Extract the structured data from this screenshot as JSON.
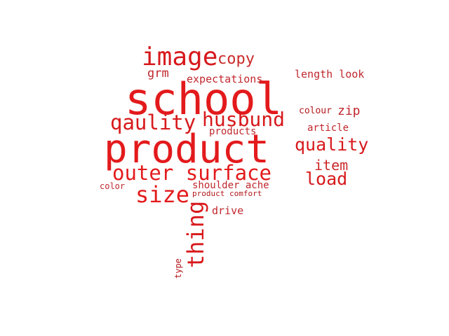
{
  "palette": {
    "background": "#ffffff",
    "word": "#e31a1c",
    "word_dark": "#b2181d",
    "word_mid": "#cb2b2b"
  },
  "words": {
    "product": "product",
    "school": "school",
    "image": "image",
    "copy": "copy",
    "grm": "grm",
    "expectations": "expectations",
    "length_look": "length look",
    "qaulity": "qaulity",
    "husbund": "husbund",
    "colour": "colour",
    "zip": "zip",
    "products": "products",
    "article": "article",
    "quality": "quality",
    "outer_surface": "outer surface",
    "item": "item",
    "load": "load",
    "size": "size",
    "shoulder_ache": "shoulder ache",
    "color": "color",
    "product_comfort": "product comfort",
    "drive": "drive",
    "thing": "thing",
    "type": "type"
  }
}
